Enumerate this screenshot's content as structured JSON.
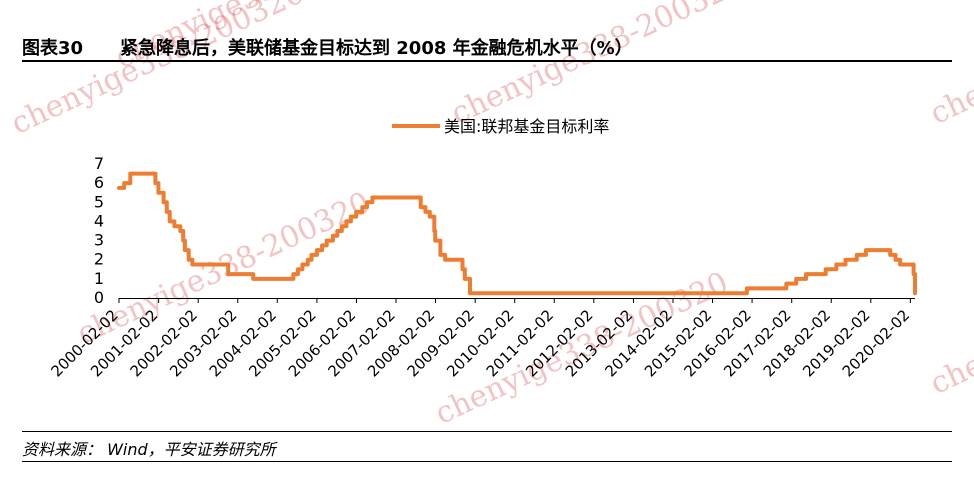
{
  "figure": {
    "number": "图表30",
    "title": "紧急降息后，美联储基金目标达到 2008 年金融危机水平（%）"
  },
  "watermark_text": "chenyige338-200320",
  "source_text": "资料来源： Wind，平安证券研究所",
  "colors": {
    "line": "#ED7D31",
    "axis": "#000000",
    "watermark": "#DC5050"
  },
  "chart_data": {
    "type": "line",
    "x_tick_labels": [
      "2000-02-02",
      "2001-02-02",
      "2002-02-02",
      "2003-02-02",
      "2004-02-02",
      "2005-02-02",
      "2006-02-02",
      "2007-02-02",
      "2008-02-02",
      "2009-02-02",
      "2010-02-02",
      "2011-02-02",
      "2012-02-02",
      "2013-02-02",
      "2014-02-02",
      "2015-02-02",
      "2016-02-02",
      "2017-02-02",
      "2018-02-02",
      "2019-02-02",
      "2020-02-02"
    ],
    "y_ticks": [
      0,
      1,
      2,
      3,
      4,
      5,
      6,
      7
    ],
    "ylim": [
      0,
      7
    ],
    "xlim": [
      "2000-02-02",
      "2020-03-16"
    ],
    "legend_position": "top-center",
    "grid": false,
    "series": [
      {
        "name": "美国:联邦基金目标利率",
        "points": [
          [
            "2000-02-02",
            5.75
          ],
          [
            "2000-03-21",
            6.0
          ],
          [
            "2000-05-16",
            6.5
          ],
          [
            "2001-01-03",
            6.0
          ],
          [
            "2001-01-31",
            5.5
          ],
          [
            "2001-03-20",
            5.0
          ],
          [
            "2001-04-18",
            4.5
          ],
          [
            "2001-05-15",
            4.0
          ],
          [
            "2001-06-27",
            3.75
          ],
          [
            "2001-08-21",
            3.5
          ],
          [
            "2001-09-17",
            3.0
          ],
          [
            "2001-10-02",
            2.5
          ],
          [
            "2001-11-06",
            2.0
          ],
          [
            "2001-12-11",
            1.75
          ],
          [
            "2002-11-06",
            1.25
          ],
          [
            "2003-06-25",
            1.0
          ],
          [
            "2004-06-30",
            1.25
          ],
          [
            "2004-08-10",
            1.5
          ],
          [
            "2004-09-21",
            1.75
          ],
          [
            "2004-11-10",
            2.0
          ],
          [
            "2004-12-14",
            2.25
          ],
          [
            "2005-02-02",
            2.5
          ],
          [
            "2005-03-22",
            2.75
          ],
          [
            "2005-05-03",
            3.0
          ],
          [
            "2005-06-30",
            3.25
          ],
          [
            "2005-08-09",
            3.5
          ],
          [
            "2005-09-20",
            3.75
          ],
          [
            "2005-11-01",
            4.0
          ],
          [
            "2005-12-13",
            4.25
          ],
          [
            "2006-01-31",
            4.5
          ],
          [
            "2006-03-28",
            4.75
          ],
          [
            "2006-05-10",
            5.0
          ],
          [
            "2006-06-29",
            5.25
          ],
          [
            "2007-09-18",
            4.75
          ],
          [
            "2007-10-31",
            4.5
          ],
          [
            "2007-12-11",
            4.25
          ],
          [
            "2008-01-22",
            3.5
          ],
          [
            "2008-01-30",
            3.0
          ],
          [
            "2008-03-18",
            2.25
          ],
          [
            "2008-04-30",
            2.0
          ],
          [
            "2008-10-08",
            1.5
          ],
          [
            "2008-10-29",
            1.0
          ],
          [
            "2008-12-16",
            0.25
          ],
          [
            "2015-12-16",
            0.5
          ],
          [
            "2016-12-14",
            0.75
          ],
          [
            "2017-03-15",
            1.0
          ],
          [
            "2017-06-14",
            1.25
          ],
          [
            "2017-12-13",
            1.5
          ],
          [
            "2018-03-21",
            1.75
          ],
          [
            "2018-06-13",
            2.0
          ],
          [
            "2018-09-26",
            2.25
          ],
          [
            "2018-12-19",
            2.5
          ],
          [
            "2019-07-31",
            2.25
          ],
          [
            "2019-09-18",
            2.0
          ],
          [
            "2019-10-30",
            1.75
          ],
          [
            "2020-03-03",
            1.25
          ],
          [
            "2020-03-16",
            0.25
          ]
        ]
      }
    ]
  }
}
